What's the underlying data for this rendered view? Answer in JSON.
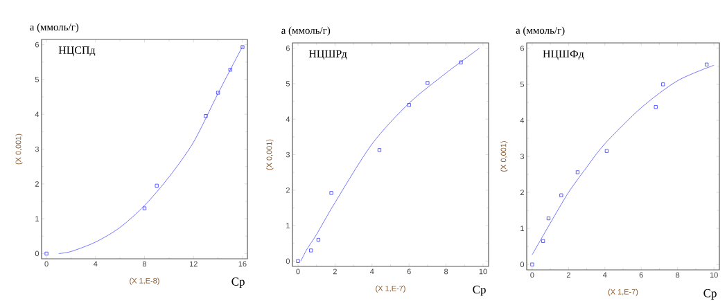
{
  "chart_data": [
    {
      "type": "scatter",
      "title": "НЦСПд",
      "ylabel": "а (ммоль/г)",
      "xlabel": "Ср",
      "annotations": [
        "(X 1,E-8)",
        "(X 0,001)"
      ],
      "xlim": [
        -0.4,
        16.4
      ],
      "ylim": [
        -0.15,
        6.15
      ],
      "xticks": [
        0,
        4,
        8,
        12,
        16
      ],
      "yticks": [
        0,
        1,
        2,
        3,
        4,
        5,
        6
      ],
      "series": [
        {
          "marker": "square",
          "color": "#3333ff",
          "x": [
            0,
            8,
            9,
            13,
            14,
            15,
            16
          ],
          "values": [
            0,
            1.3,
            1.95,
            3.95,
            4.62,
            5.28,
            5.93
          ]
        },
        {
          "type": "line",
          "color": "#6666ff",
          "x": [
            1,
            2,
            4,
            6,
            8,
            10,
            12,
            14,
            16
          ],
          "values": [
            0,
            0.06,
            0.33,
            0.75,
            1.38,
            2.2,
            3.2,
            4.6,
            5.95
          ]
        }
      ]
    },
    {
      "type": "scatter",
      "title": "НЦШРд",
      "ylabel": "а (ммоль/г)",
      "xlabel": "Ср",
      "annotations": [
        "(X 1,E-7)",
        "(X 0,001)"
      ],
      "xlim": [
        -0.3,
        10.3
      ],
      "ylim": [
        -0.15,
        6.15
      ],
      "xticks": [
        0,
        2,
        4,
        6,
        8,
        10
      ],
      "yticks": [
        0,
        1,
        2,
        3,
        4,
        5,
        6
      ],
      "series": [
        {
          "marker": "square",
          "color": "#3333ff",
          "x": [
            0,
            0.7,
            1.1,
            1.8,
            4.4,
            6,
            7,
            8.8
          ],
          "values": [
            0,
            0.3,
            0.6,
            1.92,
            3.13,
            4.4,
            5.02,
            5.6
          ]
        },
        {
          "type": "line",
          "color": "#6666ff",
          "x": [
            0.15,
            0.5,
            1,
            2,
            4,
            6,
            8,
            9.8
          ],
          "values": [
            0,
            0.35,
            0.75,
            1.65,
            3.3,
            4.45,
            5.3,
            6.0
          ]
        }
      ]
    },
    {
      "type": "scatter",
      "title": "НЦШФд",
      "ylabel": "а (ммоль/г)",
      "xlabel": "Ср",
      "annotations": [
        "(X 1,E-7)",
        "(X 0,001)"
      ],
      "xlim": [
        -0.3,
        10.3
      ],
      "ylim": [
        -0.15,
        6.15
      ],
      "xticks": [
        0,
        2,
        4,
        6,
        8,
        10
      ],
      "yticks": [
        0,
        1,
        2,
        3,
        4,
        5,
        6
      ],
      "series": [
        {
          "marker": "square",
          "color": "#3333ff",
          "x": [
            0,
            0.6,
            0.9,
            1.6,
            2.5,
            4.1,
            6.8,
            7.2,
            9.6
          ],
          "values": [
            0,
            0.65,
            1.28,
            1.92,
            2.56,
            3.15,
            4.37,
            5.0,
            5.55
          ]
        },
        {
          "type": "line",
          "color": "#6666ff",
          "x": [
            0,
            1,
            2,
            3,
            4,
            6,
            8,
            10
          ],
          "values": [
            0.27,
            1.15,
            2.0,
            2.7,
            3.35,
            4.35,
            5.1,
            5.53
          ]
        }
      ]
    }
  ]
}
